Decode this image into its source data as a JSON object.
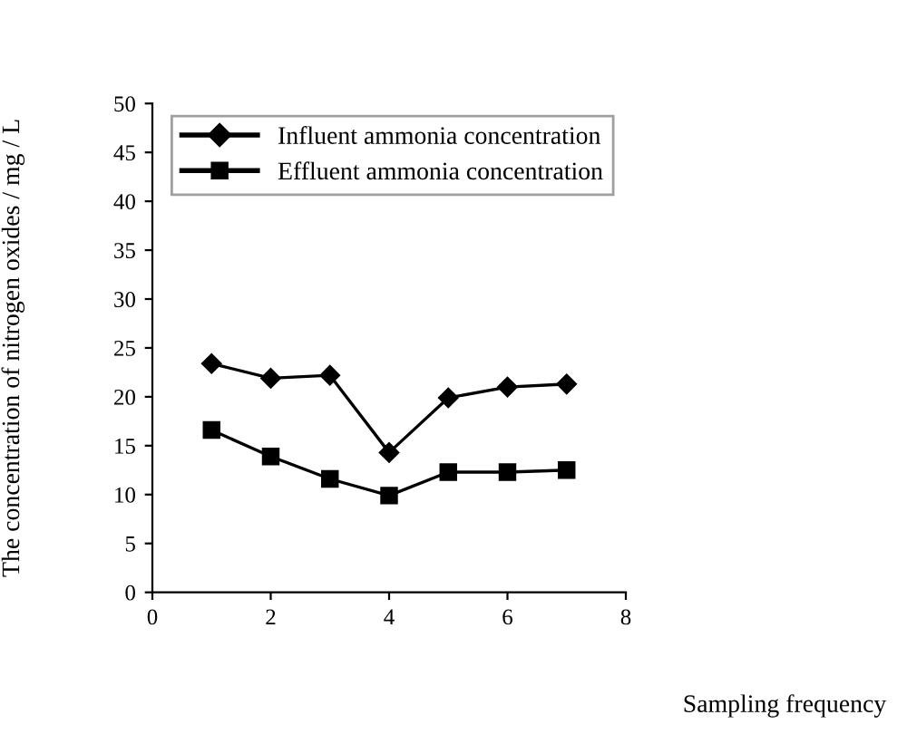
{
  "chart_data": {
    "type": "line",
    "xlabel": "Sampling frequency",
    "ylabel": "The concentration of nitrogen oxides / mg / L",
    "x": [
      1,
      2,
      3,
      4,
      5,
      6,
      7
    ],
    "series": [
      {
        "name": "Influent ammonia concentration",
        "color": "#000000",
        "marker": "diamond",
        "values": [
          23.4,
          21.9,
          22.2,
          14.3,
          19.9,
          21.0,
          21.3
        ]
      },
      {
        "name": "Effluent ammonia concentration",
        "color": "#000000",
        "marker": "square",
        "values": [
          16.6,
          13.9,
          11.6,
          9.9,
          12.3,
          12.3,
          12.5
        ]
      }
    ],
    "xlim": [
      0,
      8
    ],
    "xticks": [
      0,
      2,
      4,
      6,
      8
    ],
    "ylim": [
      0,
      50
    ],
    "yticks": [
      0,
      5,
      10,
      15,
      20,
      25,
      30,
      35,
      40,
      45,
      50
    ],
    "grid": false,
    "legend": "upper right",
    "line_style": "solid"
  }
}
